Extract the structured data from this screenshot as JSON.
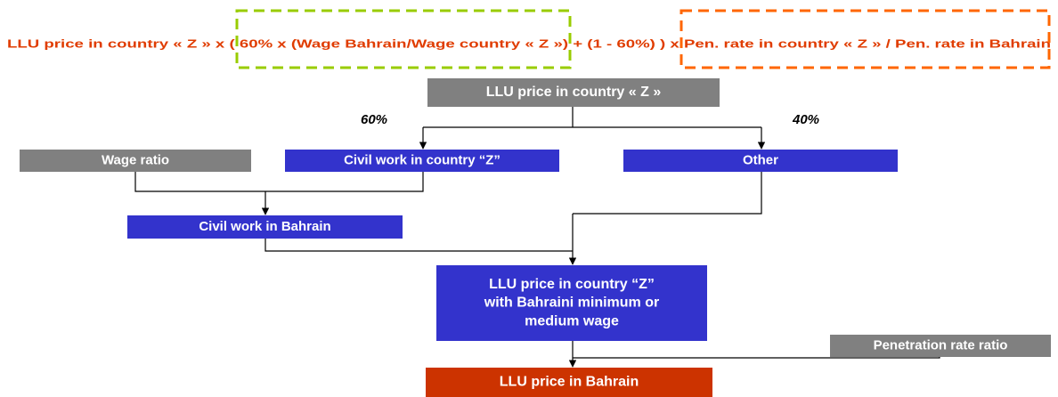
{
  "formula": "LLU price in country « Z » x ( 60% x (Wage Bahrain/Wage country « Z ») + (1 - 60%) ) x Pen. rate in country « Z » / Pen. rate in Bahrain",
  "weights": [
    "60%",
    "40%"
  ],
  "nodes": [
    {
      "lines": [
        "LLU price in country « Z »"
      ]
    },
    {
      "lines": [
        "Wage ratio"
      ]
    },
    {
      "lines": [
        "Civil work in country “Z”"
      ]
    },
    {
      "lines": [
        "Other"
      ]
    },
    {
      "lines": [
        "Civil work in Bahrain"
      ]
    },
    {
      "lines": [
        "LLU price in country “Z”",
        "with Bahraini minimum or",
        "medium wage"
      ]
    },
    {
      "lines": [
        "Penetration rate ratio"
      ]
    },
    {
      "lines": [
        "LLU price in Bahrain"
      ]
    }
  ]
}
